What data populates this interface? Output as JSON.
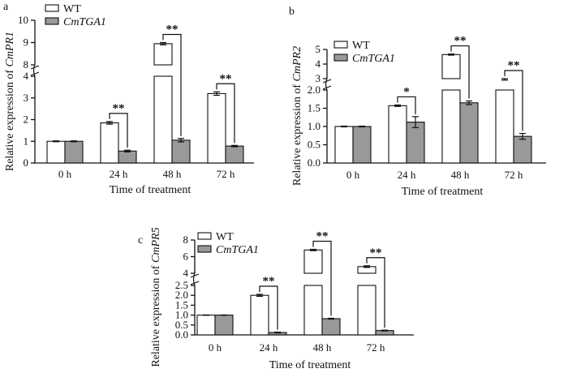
{
  "legend": {
    "wt": "WT",
    "tg": "CmTGA1"
  },
  "chart_data": [
    {
      "panel": "a",
      "type": "bar",
      "ylabel_prefix": "Relative expression of ",
      "ylabel_gene": "CmPR1",
      "xlabel": "Time of treatment",
      "categories": [
        "0 h",
        "24 h",
        "48 h",
        "72 h"
      ],
      "series": [
        {
          "name": "WT",
          "values": [
            1.0,
            1.85,
            8.95,
            3.2
          ],
          "errors": [
            0.02,
            0.06,
            0.05,
            0.08
          ]
        },
        {
          "name": "CmTGA1",
          "values": [
            1.0,
            0.55,
            1.05,
            0.78
          ],
          "errors": [
            0.02,
            0.04,
            0.08,
            0.03
          ]
        }
      ],
      "axis_break": {
        "lower": [
          0,
          4
        ],
        "upper": [
          8,
          10
        ]
      },
      "yticks_lower": [
        0,
        1,
        2,
        3,
        4
      ],
      "yticks_upper": [
        8,
        9,
        10
      ],
      "significance": [
        "",
        "**",
        "**",
        "**"
      ]
    },
    {
      "panel": "b",
      "type": "bar",
      "ylabel_prefix": "Relative expression of ",
      "ylabel_gene": "CmPR2",
      "xlabel": "Time of treatment",
      "categories": [
        "0 h",
        "24 h",
        "48 h",
        "72 h"
      ],
      "series": [
        {
          "name": "WT",
          "values": [
            1.0,
            1.57,
            4.65,
            2.95
          ],
          "errors": [
            0.01,
            0.02,
            0.04,
            0.05
          ]
        },
        {
          "name": "CmTGA1",
          "values": [
            1.0,
            1.12,
            1.65,
            0.73
          ],
          "errors": [
            0.01,
            0.15,
            0.05,
            0.08
          ]
        }
      ],
      "axis_break": {
        "lower": [
          0,
          2.0
        ],
        "upper": [
          3,
          5
        ]
      },
      "yticks_lower": [
        0.0,
        0.5,
        1.0,
        1.5,
        2.0
      ],
      "yticks_upper": [
        3,
        4,
        5
      ],
      "significance": [
        "",
        "*",
        "**",
        "**"
      ]
    },
    {
      "panel": "c",
      "type": "bar",
      "ylabel_prefix": "Relative expression of ",
      "ylabel_gene": "CmPR5",
      "xlabel": "Time of treatment",
      "categories": [
        "0 h",
        "24 h",
        "48 h",
        "72 h"
      ],
      "series": [
        {
          "name": "WT",
          "values": [
            1.0,
            2.0,
            6.8,
            4.8
          ],
          "errors": [
            0.01,
            0.05,
            0.08,
            0.1
          ]
        },
        {
          "name": "CmTGA1",
          "values": [
            1.0,
            0.12,
            0.82,
            0.22
          ],
          "errors": [
            0.01,
            0.02,
            0.02,
            0.02
          ]
        }
      ],
      "axis_break": {
        "lower": [
          0,
          2.5
        ],
        "upper": [
          4,
          8
        ]
      },
      "yticks_lower": [
        0.0,
        0.5,
        1.0,
        1.5,
        2.0,
        2.5
      ],
      "yticks_upper": [
        4,
        6,
        8
      ],
      "significance": [
        "",
        "**",
        "**",
        "**"
      ]
    }
  ]
}
